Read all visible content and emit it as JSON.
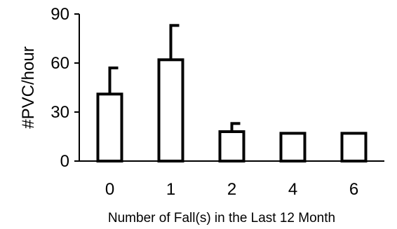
{
  "chart_data": {
    "type": "bar",
    "categories": [
      "0",
      "1",
      "2",
      "4",
      "6"
    ],
    "values": [
      41,
      62,
      18,
      17,
      17
    ],
    "errors": [
      16,
      21,
      5,
      0,
      0
    ],
    "xlabel": "Number of Fall(s) in the Last 12 Month",
    "ylabel": "#PVC/hour",
    "ylim": [
      0,
      90
    ],
    "yticks": [
      "0",
      "30",
      "60",
      "90"
    ],
    "grid": false,
    "bar_fill": "#ffffff",
    "bar_stroke": "#000000"
  }
}
